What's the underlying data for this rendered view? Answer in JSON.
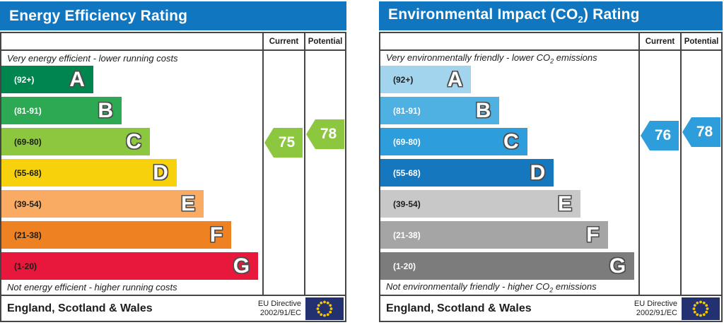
{
  "colors": {
    "header_bg": "#1176c0",
    "flag_bg": "#243171",
    "flag_star": "#f5c800"
  },
  "left": {
    "title": "Energy Efficiency Rating",
    "col_current": "Current",
    "col_potential": "Potential",
    "note_top": "Very energy efficient - lower running costs",
    "note_bottom": "Not energy efficient - higher running costs",
    "bands": [
      {
        "letter": "A",
        "range": "(92+)",
        "color": "#00854f",
        "range_color": "#ffffff",
        "width_pct": 35.2
      },
      {
        "letter": "B",
        "range": "(81-91)",
        "color": "#2ca952",
        "range_color": "#ffffff",
        "width_pct": 46.1
      },
      {
        "letter": "C",
        "range": "(69-80)",
        "color": "#8dc63f",
        "range_color": "#1d1d1b",
        "width_pct": 56.9
      },
      {
        "letter": "D",
        "range": "(55-68)",
        "color": "#f7d10b",
        "range_color": "#1d1d1b",
        "width_pct": 67.2
      },
      {
        "letter": "E",
        "range": "(39-54)",
        "color": "#f9ab63",
        "range_color": "#1d1d1b",
        "width_pct": 77.5
      },
      {
        "letter": "F",
        "range": "(21-38)",
        "color": "#ee8122",
        "range_color": "#1d1d1b",
        "width_pct": 88.1
      },
      {
        "letter": "G",
        "range": "(1-20)",
        "color": "#e8173c",
        "range_color": "#1d1d1b",
        "width_pct": 98.4
      }
    ],
    "current": {
      "value": "75",
      "color": "#8dc63f"
    },
    "potential": {
      "value": "78",
      "color": "#8dc63f"
    },
    "footer_region": "England, Scotland & Wales",
    "directive_line1": "EU Directive",
    "directive_line2": "2002/91/EC"
  },
  "right": {
    "title_pre": "Environmental Impact (CO",
    "title_sub": "2",
    "title_post": ") Rating",
    "col_current": "Current",
    "col_potential": "Potential",
    "note_top_pre": "Very environmentally friendly - lower CO",
    "note_top_sub": "2",
    "note_top_post": " emissions",
    "note_bottom_pre": "Not environmentally friendly - higher CO",
    "note_bottom_sub": "2",
    "note_bottom_post": " emissions",
    "bands": [
      {
        "letter": "A",
        "range": "(92+)",
        "color": "#a3d4ee",
        "range_color": "#1d1d1b",
        "width_pct": 35.2
      },
      {
        "letter": "B",
        "range": "(81-91)",
        "color": "#4fb0e2",
        "range_color": "#ffffff",
        "width_pct": 46.1
      },
      {
        "letter": "C",
        "range": "(69-80)",
        "color": "#2d9ddb",
        "range_color": "#ffffff",
        "width_pct": 56.9
      },
      {
        "letter": "D",
        "range": "(55-68)",
        "color": "#1577bd",
        "range_color": "#ffffff",
        "width_pct": 67.2
      },
      {
        "letter": "E",
        "range": "(39-54)",
        "color": "#c8c8c8",
        "range_color": "#1d1d1b",
        "width_pct": 77.5
      },
      {
        "letter": "F",
        "range": "(21-38)",
        "color": "#a5a5a5",
        "range_color": "#ffffff",
        "width_pct": 88.1
      },
      {
        "letter": "G",
        "range": "(1-20)",
        "color": "#7c7c7c",
        "range_color": "#ffffff",
        "width_pct": 98.4
      }
    ],
    "current": {
      "value": "76",
      "color": "#2d9ddb"
    },
    "potential": {
      "value": "78",
      "color": "#2d9ddb"
    },
    "footer_region": "England, Scotland & Wales",
    "directive_line1": "EU Directive",
    "directive_line2": "2002/91/EC"
  },
  "chart_data": [
    {
      "type": "bar",
      "title": "Energy Efficiency Rating",
      "categories": [
        "A",
        "B",
        "C",
        "D",
        "E",
        "F",
        "G"
      ],
      "band_ranges": [
        "92+",
        "81-91",
        "69-80",
        "55-68",
        "39-54",
        "21-38",
        "1-20"
      ],
      "band_colors": [
        "#00854f",
        "#2ca952",
        "#8dc63f",
        "#f7d10b",
        "#f9ab63",
        "#ee8122",
        "#e8173c"
      ],
      "bar_length_pct": [
        35.2,
        46.1,
        56.9,
        67.2,
        77.5,
        88.1,
        98.4
      ],
      "current": 75,
      "potential": 78,
      "marker_color": "#8dc63f",
      "xlabel": "",
      "ylabel": "",
      "annotations": [
        "Very energy efficient - lower running costs",
        "Not energy efficient - higher running costs"
      ],
      "footer": "England, Scotland & Wales | EU Directive 2002/91/EC"
    },
    {
      "type": "bar",
      "title": "Environmental Impact (CO2) Rating",
      "categories": [
        "A",
        "B",
        "C",
        "D",
        "E",
        "F",
        "G"
      ],
      "band_ranges": [
        "92+",
        "81-91",
        "69-80",
        "55-68",
        "39-54",
        "21-38",
        "1-20"
      ],
      "band_colors": [
        "#a3d4ee",
        "#4fb0e2",
        "#2d9ddb",
        "#1577bd",
        "#c8c8c8",
        "#a5a5a5",
        "#7c7c7c"
      ],
      "bar_length_pct": [
        35.2,
        46.1,
        56.9,
        67.2,
        77.5,
        88.1,
        98.4
      ],
      "current": 76,
      "potential": 78,
      "marker_color": "#2d9ddb",
      "xlabel": "",
      "ylabel": "",
      "annotations": [
        "Very environmentally friendly - lower CO2 emissions",
        "Not environmentally friendly - higher CO2 emissions"
      ],
      "footer": "England, Scotland & Wales | EU Directive 2002/91/EC"
    }
  ]
}
